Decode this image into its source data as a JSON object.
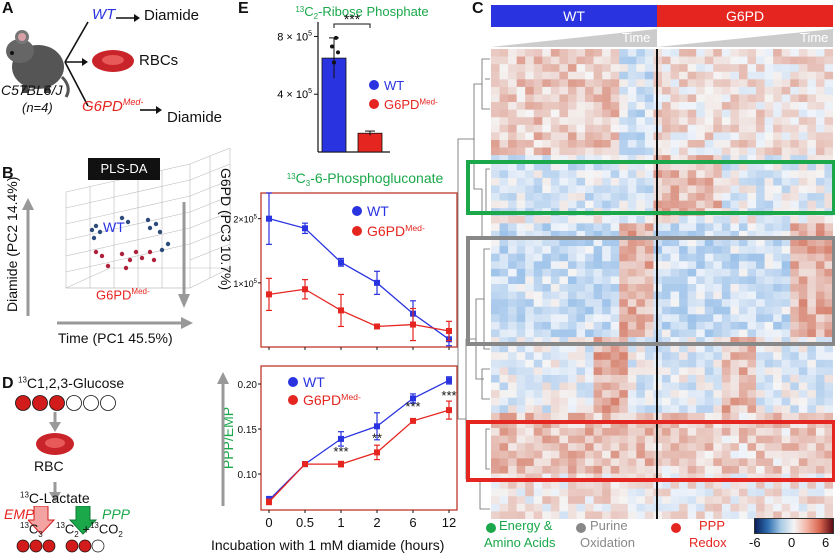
{
  "panels": {
    "a": {
      "letter": "A",
      "wt": "WT",
      "arrow_target_top": "Diamide",
      "rbcs": "RBCs",
      "strain": "C57BL6/J",
      "n": "(n=4)",
      "g6pd": "G6PD",
      "g6pd_sup": "Med-",
      "arrow_target_bottom": "Diamide"
    },
    "b": {
      "letter": "B",
      "title": "PLS-DA",
      "axis_diamide": "Diamide (PC2 14.4%)",
      "axis_time": "Time (PC1 45.5%)",
      "axis_g6pd": "G6PD (PC3 10.7%)",
      "label_wt": "WT",
      "label_g6pd": "G6PD",
      "label_g6pd_sup": "Med-"
    },
    "d": {
      "letter": "D",
      "glucose_prefix": "13",
      "glucose": "C1,2,3-Glucose",
      "rbc": "RBC",
      "lactate_prefix": "13",
      "lactate": "C-Lactate",
      "emp": "EMP",
      "ppp": "PPP",
      "c3": "13C3",
      "c2": "13C2 +13CO2"
    },
    "e": {
      "letter": "E",
      "incubation_label": "Incubation with 1 mM diamide (hours)"
    },
    "c": {
      "letter": "C",
      "wt": "WT",
      "g6pd": "G6PD",
      "time": "Time",
      "time2": "Time",
      "legend_green": "Energy &",
      "legend_green2": "Amino Acids",
      "legend_gray": "Purine",
      "legend_gray2": "Oxidation",
      "legend_red": "PPP",
      "legend_red2": "Redox",
      "scale_min": "-6",
      "scale_mid": "0",
      "scale_max": "6"
    }
  },
  "colors": {
    "wt": "#2a33e0",
    "g6pd": "#e52520",
    "green": "#1aa84a",
    "gray": "#888888"
  },
  "chart_data": [
    {
      "type": "bar",
      "title": "13C2-Ribose Phosphate",
      "categories": [
        "WT",
        "G6PDMed-"
      ],
      "values": [
        650000,
        130000
      ],
      "errors": [
        140000,
        15000
      ],
      "ylim": [
        0,
        900000
      ],
      "yticks": [
        "4 × 10^5",
        "8 × 10^5"
      ],
      "annotation": "***",
      "legend": [
        "WT",
        "G6PDMed-"
      ]
    },
    {
      "type": "line",
      "title": "13C3-6-Phosphogluconate",
      "x": [
        "0",
        "0.5",
        "1",
        "2",
        "6",
        "12"
      ],
      "series": [
        {
          "name": "WT",
          "values": [
            200000,
            185000,
            132000,
            100000,
            52000,
            12000
          ],
          "errors": [
            40000,
            8000,
            6000,
            18000,
            20000,
            10000
          ]
        },
        {
          "name": "G6PDMed-",
          "values": [
            82000,
            90000,
            57000,
            32000,
            35000,
            25000
          ],
          "errors": [
            25000,
            15000,
            25000,
            3000,
            25000,
            15000
          ]
        }
      ],
      "ylim": [
        0,
        240000
      ],
      "yticks": [
        "1×10^5",
        "2×10^5"
      ]
    },
    {
      "type": "line",
      "ylabel": "PPP/EMP",
      "x": [
        "0",
        "0.5",
        "1",
        "2",
        "6",
        "12"
      ],
      "series": [
        {
          "name": "WT",
          "values": [
            0.071,
            0.111,
            0.139,
            0.153,
            0.184,
            0.204
          ],
          "errors": [
            0.004,
            0.002,
            0.008,
            0.015,
            0.005,
            0.004
          ]
        },
        {
          "name": "G6PDMed-",
          "values": [
            0.069,
            0.111,
            0.111,
            0.124,
            0.159,
            0.171
          ],
          "errors": [
            0.003,
            0.002,
            0.003,
            0.008,
            0.002,
            0.01
          ]
        }
      ],
      "ylim": [
        0.06,
        0.22
      ],
      "yticks": [
        "0.10",
        "0.15",
        "0.20"
      ],
      "annotations": [
        {
          "x": "1",
          "text": "***"
        },
        {
          "x": "2",
          "text": "**"
        },
        {
          "x": "6",
          "text": "***"
        },
        {
          "x": "12",
          "text": "***"
        }
      ]
    }
  ]
}
